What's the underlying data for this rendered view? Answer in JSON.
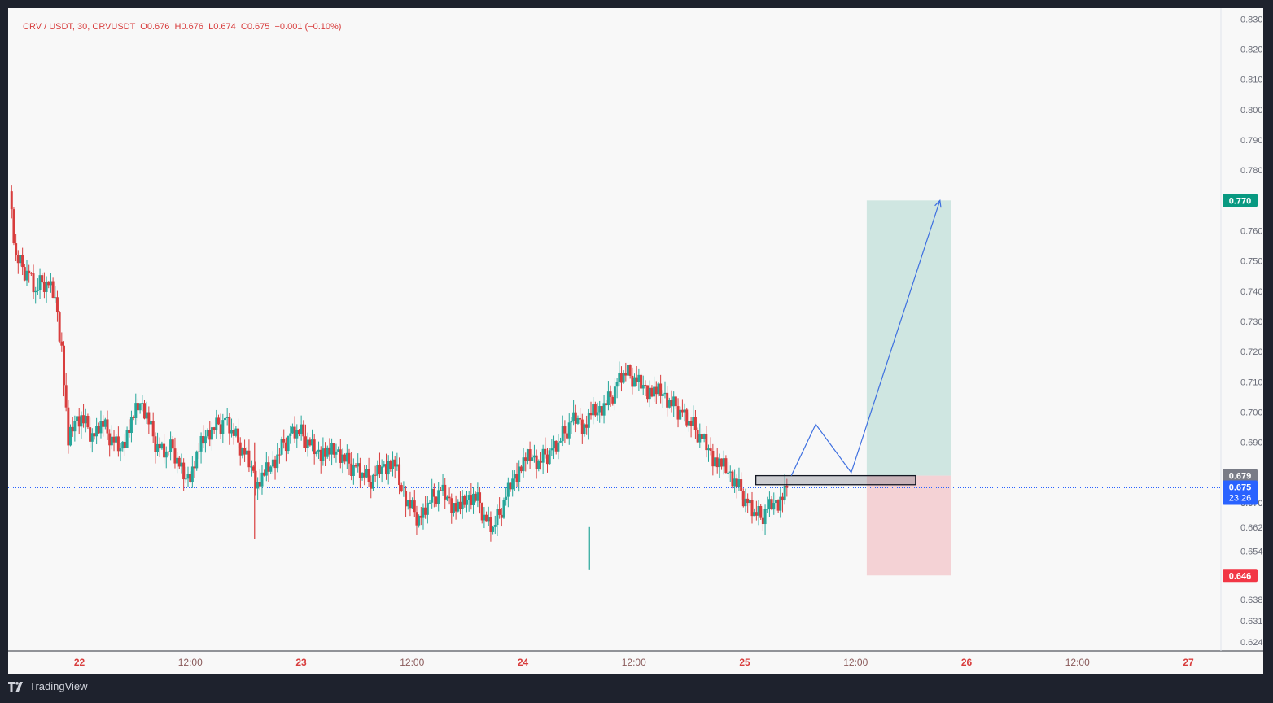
{
  "legend": {
    "symbol": "CRV / USDT, 30, CRVUSDT",
    "open": "O0.676",
    "high": "H0.676",
    "low": "L0.674",
    "close": "C0.675",
    "change": "−0.001 (−0.10%)"
  },
  "footer": {
    "brand": "TradingView",
    "logo_icon": "tradingview-logo-icon"
  },
  "colors": {
    "up": "#26a69a",
    "down": "#d83d3d",
    "axis_text": "#6a6d78",
    "profit_zone": "#cfe6e1",
    "loss_zone": "#f4d2d5",
    "target_badge": "#089981",
    "stop_badge": "#f23645",
    "entry_badge": "#787b86",
    "price_badge": "#2962ff",
    "projection_line": "#3d6fe0"
  },
  "chart_data": {
    "type": "candlestick",
    "instrument": "CRV / USDT",
    "interval": "30",
    "y_ticks": [
      0.624,
      0.631,
      0.638,
      0.646,
      0.654,
      0.662,
      0.67,
      0.679,
      0.69,
      0.7,
      0.71,
      0.72,
      0.73,
      0.74,
      0.75,
      0.76,
      0.77,
      0.78,
      0.79,
      0.8,
      0.81,
      0.82,
      0.83
    ],
    "y_range": [
      0.622,
      0.833
    ],
    "x_ticks": [
      {
        "label": "22",
        "kind": "day"
      },
      {
        "label": "12:00",
        "kind": "time"
      },
      {
        "label": "23",
        "kind": "day"
      },
      {
        "label": "12:00",
        "kind": "time"
      },
      {
        "label": "24",
        "kind": "day"
      },
      {
        "label": "12:00",
        "kind": "time"
      },
      {
        "label": "25",
        "kind": "day"
      },
      {
        "label": "12:00",
        "kind": "time"
      },
      {
        "label": "26",
        "kind": "day"
      },
      {
        "label": "12:00",
        "kind": "time"
      },
      {
        "label": "27",
        "kind": "day"
      }
    ],
    "close_path": [
      0.793,
      0.797,
      0.795,
      0.792,
      0.79,
      0.786,
      0.783,
      0.786,
      0.788,
      0.779,
      0.773,
      0.752,
      0.748,
      0.746,
      0.74,
      0.743,
      0.742,
      0.738,
      0.722,
      0.689,
      0.697,
      0.699,
      0.695,
      0.692,
      0.697,
      0.693,
      0.69,
      0.688,
      0.694,
      0.698,
      0.703,
      0.7,
      0.692,
      0.688,
      0.687,
      0.688,
      0.682,
      0.678,
      0.682,
      0.687,
      0.692,
      0.695,
      0.696,
      0.698,
      0.694,
      0.69,
      0.686,
      0.682,
      0.677,
      0.679,
      0.682,
      0.686,
      0.69,
      0.693,
      0.694,
      0.692,
      0.689,
      0.687,
      0.688,
      0.686,
      0.687,
      0.686,
      0.683,
      0.682,
      0.68,
      0.677,
      0.679,
      0.682,
      0.684,
      0.682,
      0.674,
      0.671,
      0.667,
      0.665,
      0.67,
      0.672,
      0.674,
      0.672,
      0.67,
      0.668,
      0.671,
      0.673,
      0.67,
      0.664,
      0.662,
      0.666,
      0.672,
      0.678,
      0.682,
      0.684,
      0.685,
      0.684,
      0.686,
      0.688,
      0.69,
      0.693,
      0.697,
      0.698,
      0.696,
      0.699,
      0.7,
      0.703,
      0.705,
      0.71,
      0.713,
      0.712,
      0.71,
      0.709,
      0.708,
      0.706,
      0.706,
      0.704,
      0.702,
      0.7,
      0.697,
      0.694,
      0.691,
      0.688,
      0.685,
      0.682,
      0.68,
      0.678,
      0.674,
      0.67,
      0.667,
      0.665,
      0.668,
      0.67,
      0.672,
      0.675
    ],
    "close_path_x": [
      -0.6,
      3.2
    ],
    "extras": {
      "spike_low": 0.658,
      "spike_x": 0.79,
      "wick_low": 0.648,
      "wick_x": 2.3
    },
    "position": {
      "entry": 0.679,
      "target": 0.77,
      "stop": 0.646,
      "current": 0.675,
      "countdown": "23:26",
      "hidden_tick": "0.670",
      "x_start": 3.55,
      "x_end": 3.93
    },
    "entry_zone": {
      "top": 0.679,
      "bottom": 0.676,
      "x_start": 3.05,
      "x_end": 3.77
    },
    "projection": [
      {
        "x": 3.21,
        "y": 0.679
      },
      {
        "x": 3.32,
        "y": 0.696
      },
      {
        "x": 3.48,
        "y": 0.68
      },
      {
        "x": 3.88,
        "y": 0.77
      }
    ]
  }
}
